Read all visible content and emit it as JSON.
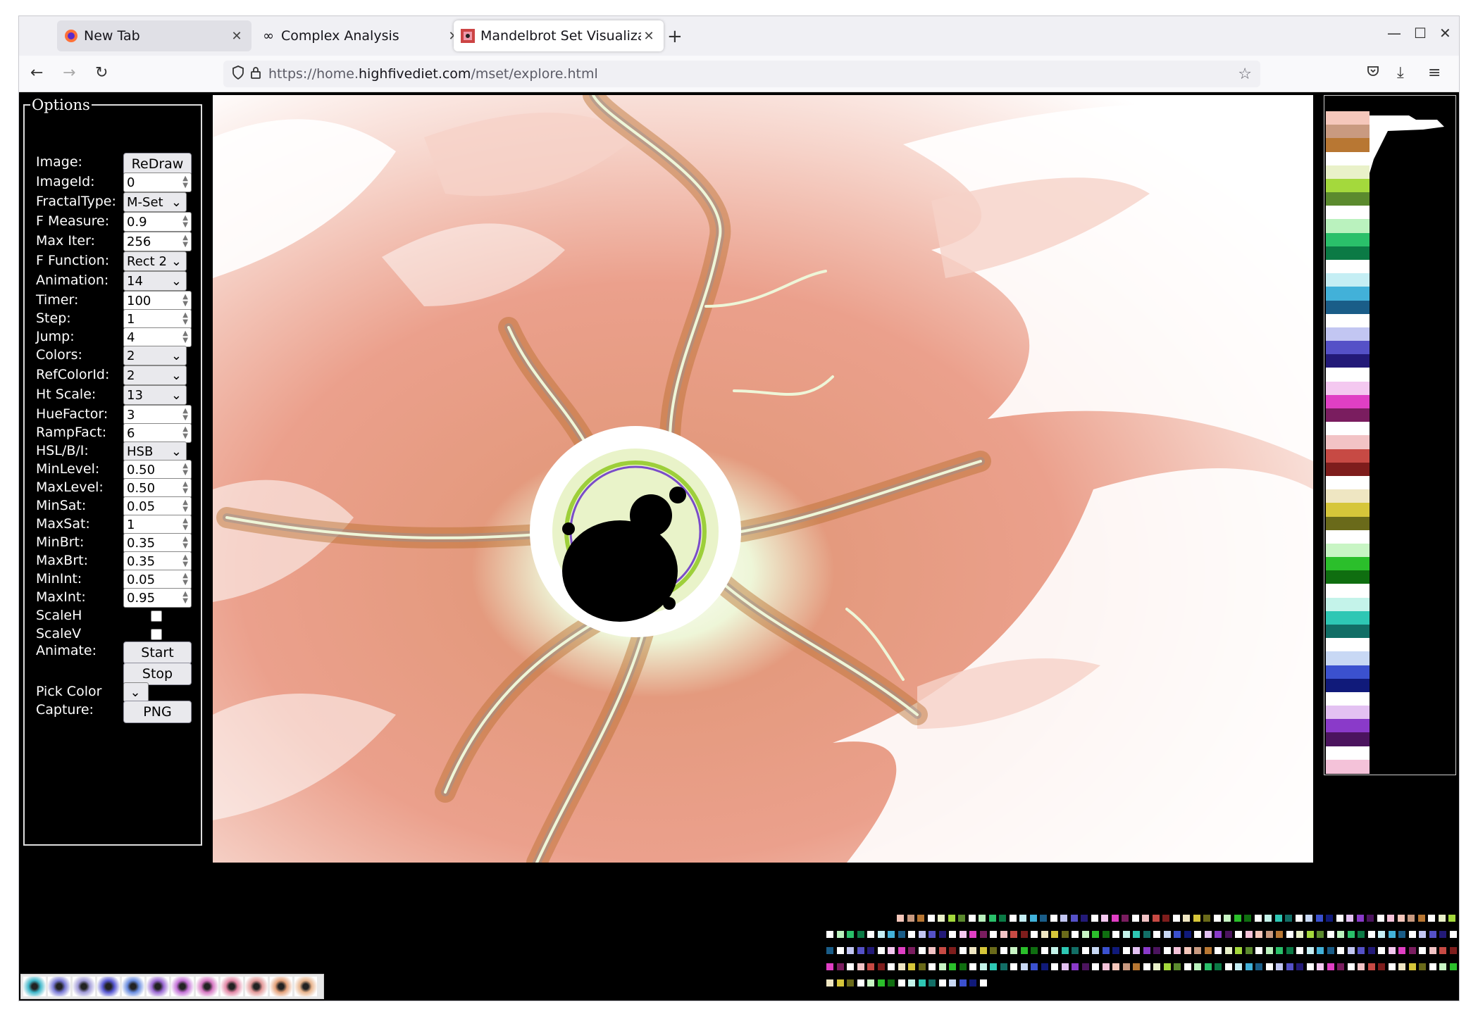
{
  "browser": {
    "tabs": [
      {
        "label": "New Tab",
        "icon": "firefox-icon"
      },
      {
        "label": "Complex Analysis",
        "icon": "infinity-icon"
      },
      {
        "label": "Mandelbrot Set Visualiza",
        "icon": "mandelbrot-favicon-icon"
      }
    ],
    "url_prefix": "https://home.",
    "url_domain": "highfivediet.com",
    "url_suffix": "/mset/explore.html"
  },
  "options": {
    "legend": "Options",
    "rows": [
      {
        "label": "Image:",
        "kind": "button",
        "value": "ReDraw"
      },
      {
        "label": "ImageId:",
        "kind": "number",
        "value": "0"
      },
      {
        "label": "FractalType:",
        "kind": "select",
        "value": "M-Set"
      },
      {
        "label": "F Measure:",
        "kind": "number",
        "value": "0.9"
      },
      {
        "label": "Max Iter:",
        "kind": "number",
        "value": "256"
      },
      {
        "label": "F Function:",
        "kind": "select",
        "value": "Rect 2"
      },
      {
        "label": "Animation:",
        "kind": "select",
        "value": "14"
      },
      {
        "label": "Timer:",
        "kind": "number",
        "value": "100"
      },
      {
        "label": "Step:",
        "kind": "number",
        "value": "1"
      },
      {
        "label": "Jump:",
        "kind": "number",
        "value": "4"
      },
      {
        "label": "Colors:",
        "kind": "select",
        "value": "2"
      },
      {
        "label": "RefColorId:",
        "kind": "select",
        "value": "2"
      },
      {
        "label": "Ht Scale:",
        "kind": "select",
        "value": "13"
      },
      {
        "label": "HueFactor:",
        "kind": "number",
        "value": "3"
      },
      {
        "label": "RampFact:",
        "kind": "number",
        "value": "6"
      },
      {
        "label": "HSL/B/I:",
        "kind": "select",
        "value": "HSB"
      },
      {
        "label": "MinLevel:",
        "kind": "number",
        "value": "0.50"
      },
      {
        "label": "MaxLevel:",
        "kind": "number",
        "value": "0.50"
      },
      {
        "label": "MinSat:",
        "kind": "number",
        "value": "0.05"
      },
      {
        "label": "MaxSat:",
        "kind": "number",
        "value": "1"
      },
      {
        "label": "MinBrt:",
        "kind": "number",
        "value": "0.35"
      },
      {
        "label": "MaxBrt:",
        "kind": "number",
        "value": "0.35"
      },
      {
        "label": "MinInt:",
        "kind": "number",
        "value": "0.05"
      },
      {
        "label": "MaxInt:",
        "kind": "number",
        "value": "0.95"
      },
      {
        "label": "ScaleH",
        "kind": "checkbox",
        "value": ""
      },
      {
        "label": "ScaleV",
        "kind": "checkbox",
        "value": ""
      },
      {
        "label": "Animate:",
        "kind": "button",
        "value": "Start"
      },
      {
        "label": "",
        "kind": "button",
        "value": "Stop"
      },
      {
        "label": "Pick Color",
        "kind": "colorpicker",
        "value": ""
      },
      {
        "label": "Capture:",
        "kind": "button",
        "value": "PNG"
      }
    ]
  },
  "colors": {
    "bg": "#000000",
    "salmon": "#eba08c",
    "pale_pink": "#f6d2c8",
    "brown": "#b86e2c",
    "grey": "#9a8f8f",
    "green": "#9dcf3a",
    "purple": "#7a4cc9"
  },
  "palette_strip": [
    "#f5c7bb",
    "#c99a80",
    "#b87733",
    "#ffffff",
    "#e9f1c9",
    "#a4d93c",
    "#5b8a2e",
    "#ffffff",
    "#baf2be",
    "#2ac06a",
    "#0b7a45",
    "#ffffff",
    "#c5eef4",
    "#42b1d9",
    "#1a5d88",
    "#ffffff",
    "#c2c6f2",
    "#5551c7",
    "#231a78",
    "#ffffff",
    "#f4c8f0",
    "#e03fc4",
    "#7a1d5f",
    "#ffffff",
    "#f2c3c5",
    "#c74a44",
    "#7e1d1c",
    "#ffffff",
    "#efe6c2",
    "#d6c63a",
    "#6a6a1a",
    "#ffffff",
    "#c8f5c4",
    "#2bbf2b",
    "#0f6e10",
    "#ffffff",
    "#c4f3ea",
    "#2ec7b4",
    "#126e66",
    "#ffffff",
    "#c8d8f4",
    "#3b51cf",
    "#101a7a",
    "#ffffff",
    "#e3c1f2",
    "#8a3ac9",
    "#4b145e",
    "#ffffff",
    "#f4c2d9"
  ]
}
